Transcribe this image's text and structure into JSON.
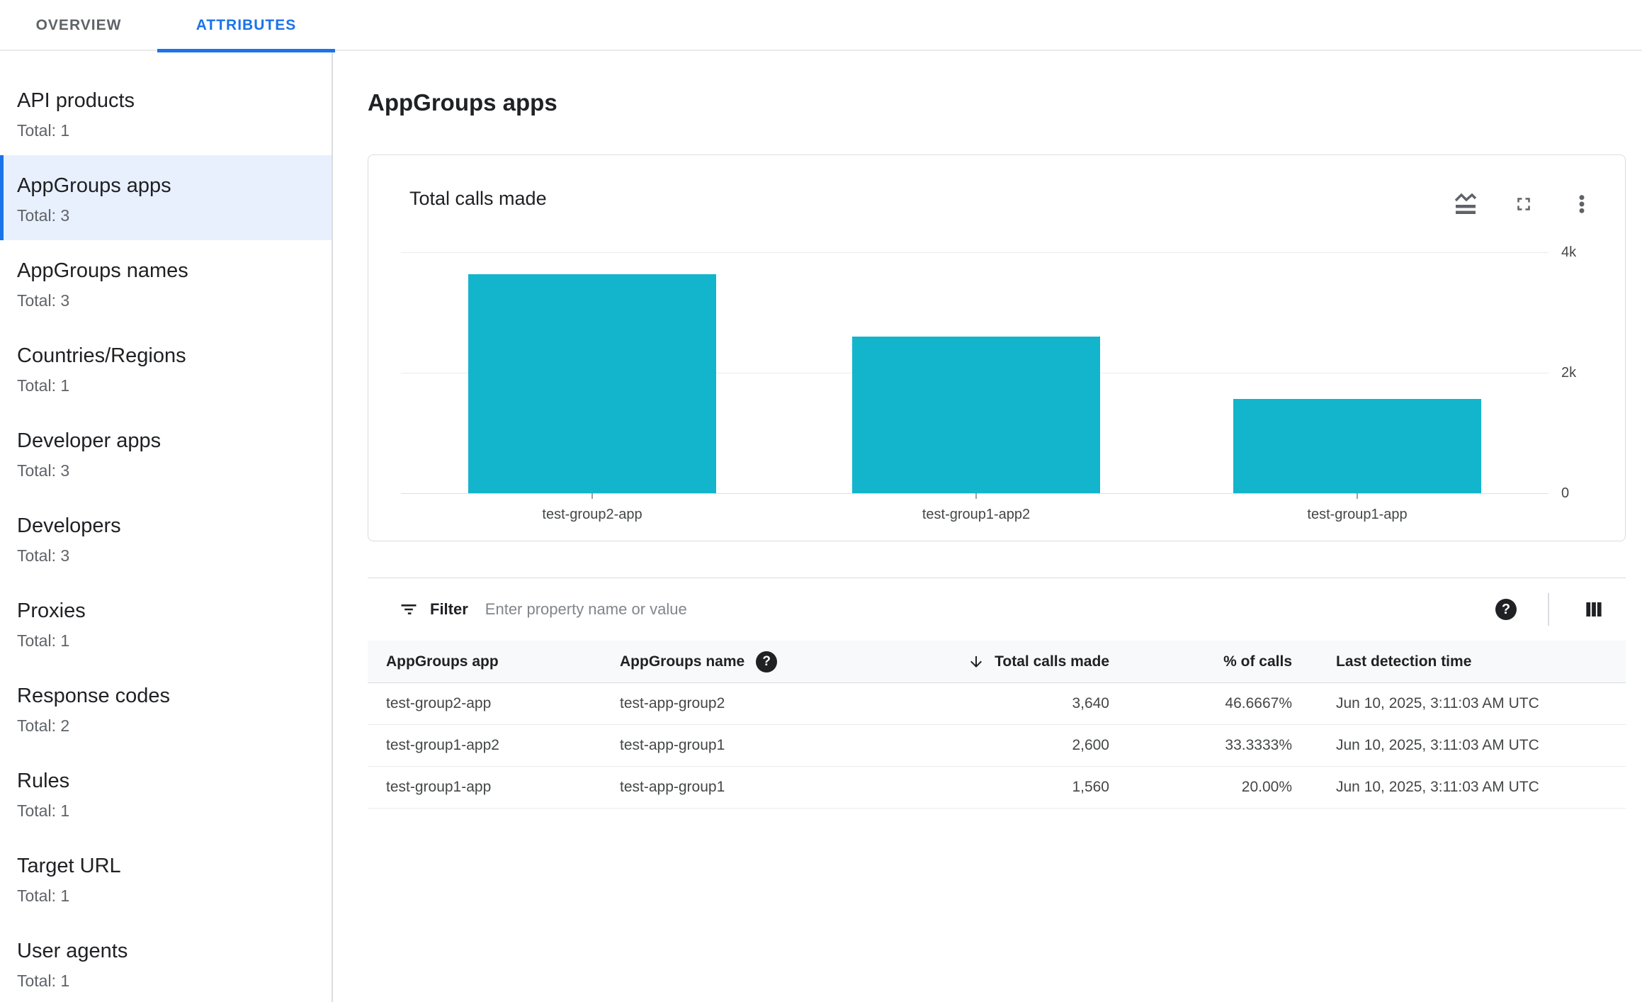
{
  "tabs": [
    {
      "label": "OVERVIEW",
      "active": false
    },
    {
      "label": "ATTRIBUTES",
      "active": true
    }
  ],
  "sidebar": {
    "items": [
      {
        "label": "API products",
        "total": "Total: 1",
        "selected": false
      },
      {
        "label": "AppGroups apps",
        "total": "Total: 3",
        "selected": true
      },
      {
        "label": "AppGroups names",
        "total": "Total: 3",
        "selected": false
      },
      {
        "label": "Countries/Regions",
        "total": "Total: 1",
        "selected": false
      },
      {
        "label": "Developer apps",
        "total": "Total: 3",
        "selected": false
      },
      {
        "label": "Developers",
        "total": "Total: 3",
        "selected": false
      },
      {
        "label": "Proxies",
        "total": "Total: 1",
        "selected": false
      },
      {
        "label": "Response codes",
        "total": "Total: 2",
        "selected": false
      },
      {
        "label": "Rules",
        "total": "Total: 1",
        "selected": false
      },
      {
        "label": "Target URL",
        "total": "Total: 1",
        "selected": false
      },
      {
        "label": "User agents",
        "total": "Total: 1",
        "selected": false
      }
    ]
  },
  "page": {
    "title": "AppGroups apps"
  },
  "chart_card": {
    "title": "Total calls made",
    "icons": [
      "area-chart-icon",
      "fullscreen-icon",
      "more-vert-icon"
    ]
  },
  "chart_data": {
    "type": "bar",
    "title": "Total calls made",
    "categories": [
      "test-group2-app",
      "test-group1-app2",
      "test-group1-app"
    ],
    "values": [
      3640,
      2600,
      1560
    ],
    "xlabel": "",
    "ylabel": "",
    "ylim": [
      0,
      4000
    ],
    "yticks": [
      {
        "value": 0,
        "label": "0"
      },
      {
        "value": 2000,
        "label": "2k"
      },
      {
        "value": 4000,
        "label": "4k"
      }
    ],
    "bar_color": "#12b5cb",
    "grid": "horizontal",
    "legend_position": "none"
  },
  "filter": {
    "label": "Filter",
    "placeholder": "Enter property name or value"
  },
  "table": {
    "columns": [
      {
        "label": "AppGroups app",
        "align": "left"
      },
      {
        "label": "AppGroups name",
        "align": "left",
        "help": true
      },
      {
        "label": "Total calls made",
        "align": "right",
        "sorted": "desc"
      },
      {
        "label": "% of calls",
        "align": "right"
      },
      {
        "label": "Last detection time",
        "align": "left"
      }
    ],
    "rows": [
      [
        "test-group2-app",
        "test-app-group2",
        "3,640",
        "46.6667%",
        "Jun 10, 2025, 3:11:03 AM UTC"
      ],
      [
        "test-group1-app2",
        "test-app-group1",
        "2,600",
        "33.3333%",
        "Jun 10, 2025, 3:11:03 AM UTC"
      ],
      [
        "test-group1-app",
        "test-app-group1",
        "1,560",
        "20.00%",
        "Jun 10, 2025, 3:11:03 AM UTC"
      ]
    ]
  },
  "help_glyph": "?",
  "colors": {
    "accent": "#1a73e8",
    "selected_bg": "#e8f0fe",
    "bar": "#12b5cb",
    "border": "#dadce0",
    "text": "#202124",
    "muted": "#5f6368"
  }
}
